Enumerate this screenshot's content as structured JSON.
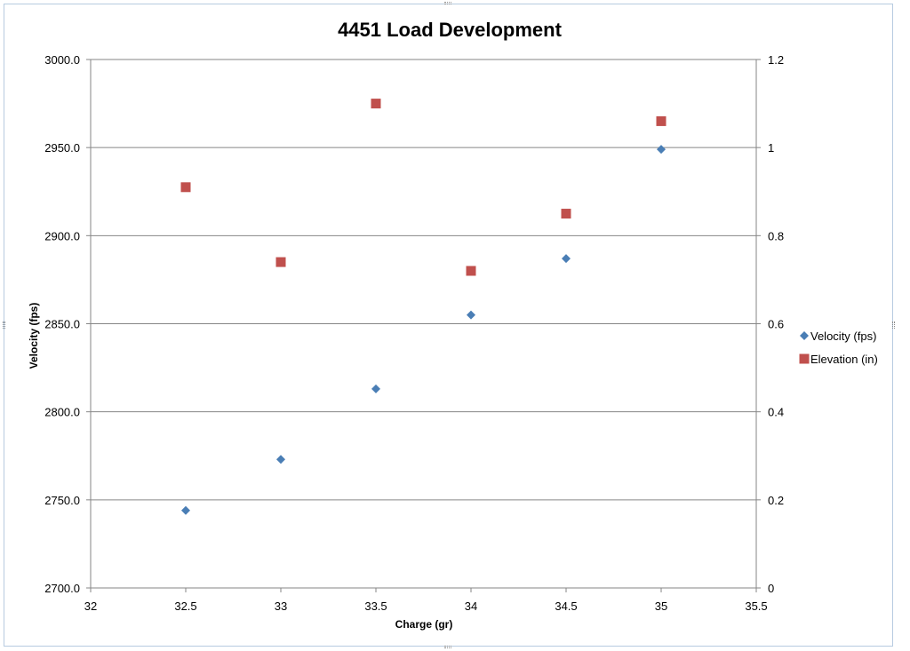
{
  "chart_data": {
    "type": "scatter",
    "title": "4451 Load Development",
    "xlabel": "Charge (gr)",
    "ylabel": "Velocity (fps)",
    "y2label": "",
    "xlim": [
      32,
      35.5
    ],
    "ylim": [
      2700,
      3000
    ],
    "y2lim": [
      0,
      1.2
    ],
    "xticks": [
      "32",
      "32.5",
      "33",
      "33.5",
      "34",
      "34.5",
      "35",
      "35.5"
    ],
    "yticks": [
      "2700.0",
      "2750.0",
      "2800.0",
      "2850.0",
      "2900.0",
      "2950.0",
      "3000.0"
    ],
    "y2ticks": [
      "0",
      "0.2",
      "0.4",
      "0.6",
      "0.8",
      "1",
      "1.2"
    ],
    "grid": "horizontal",
    "legend": "right",
    "series": [
      {
        "name": "Velocity (fps)",
        "axis": "left",
        "marker": "diamond",
        "color": "#4a7eb5",
        "x": [
          32.5,
          33,
          33.5,
          34,
          34.5,
          35
        ],
        "y": [
          2744,
          2773,
          2813,
          2855,
          2887,
          2949
        ]
      },
      {
        "name": "Elevation (in)",
        "axis": "right",
        "marker": "square",
        "color": "#c0504d",
        "x": [
          32.5,
          33,
          33.5,
          34,
          34.5,
          35
        ],
        "y": [
          0.91,
          0.74,
          1.1,
          0.72,
          0.85,
          1.06
        ]
      }
    ]
  }
}
